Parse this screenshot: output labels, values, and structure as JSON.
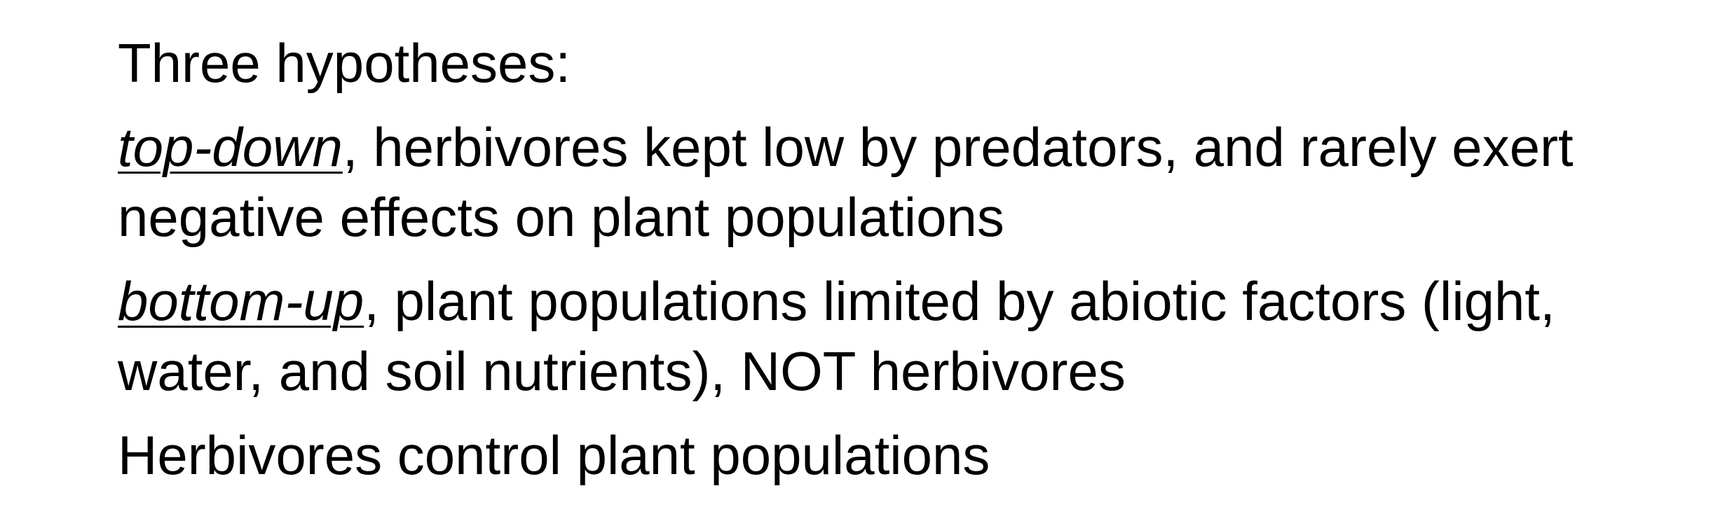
{
  "heading": "Three hypotheses:",
  "top_down": {
    "term": "top-down",
    "line1_rest": ", herbivores kept low by predators, and rarely exert",
    "line2": "negative effects on plant populations"
  },
  "bottom_up": {
    "term": "bottom-up",
    "line1_rest": ", plant populations limited by abiotic factors (light,",
    "line2": "water, and soil nutrients), NOT herbivores"
  },
  "third": "Herbivores control plant populations"
}
